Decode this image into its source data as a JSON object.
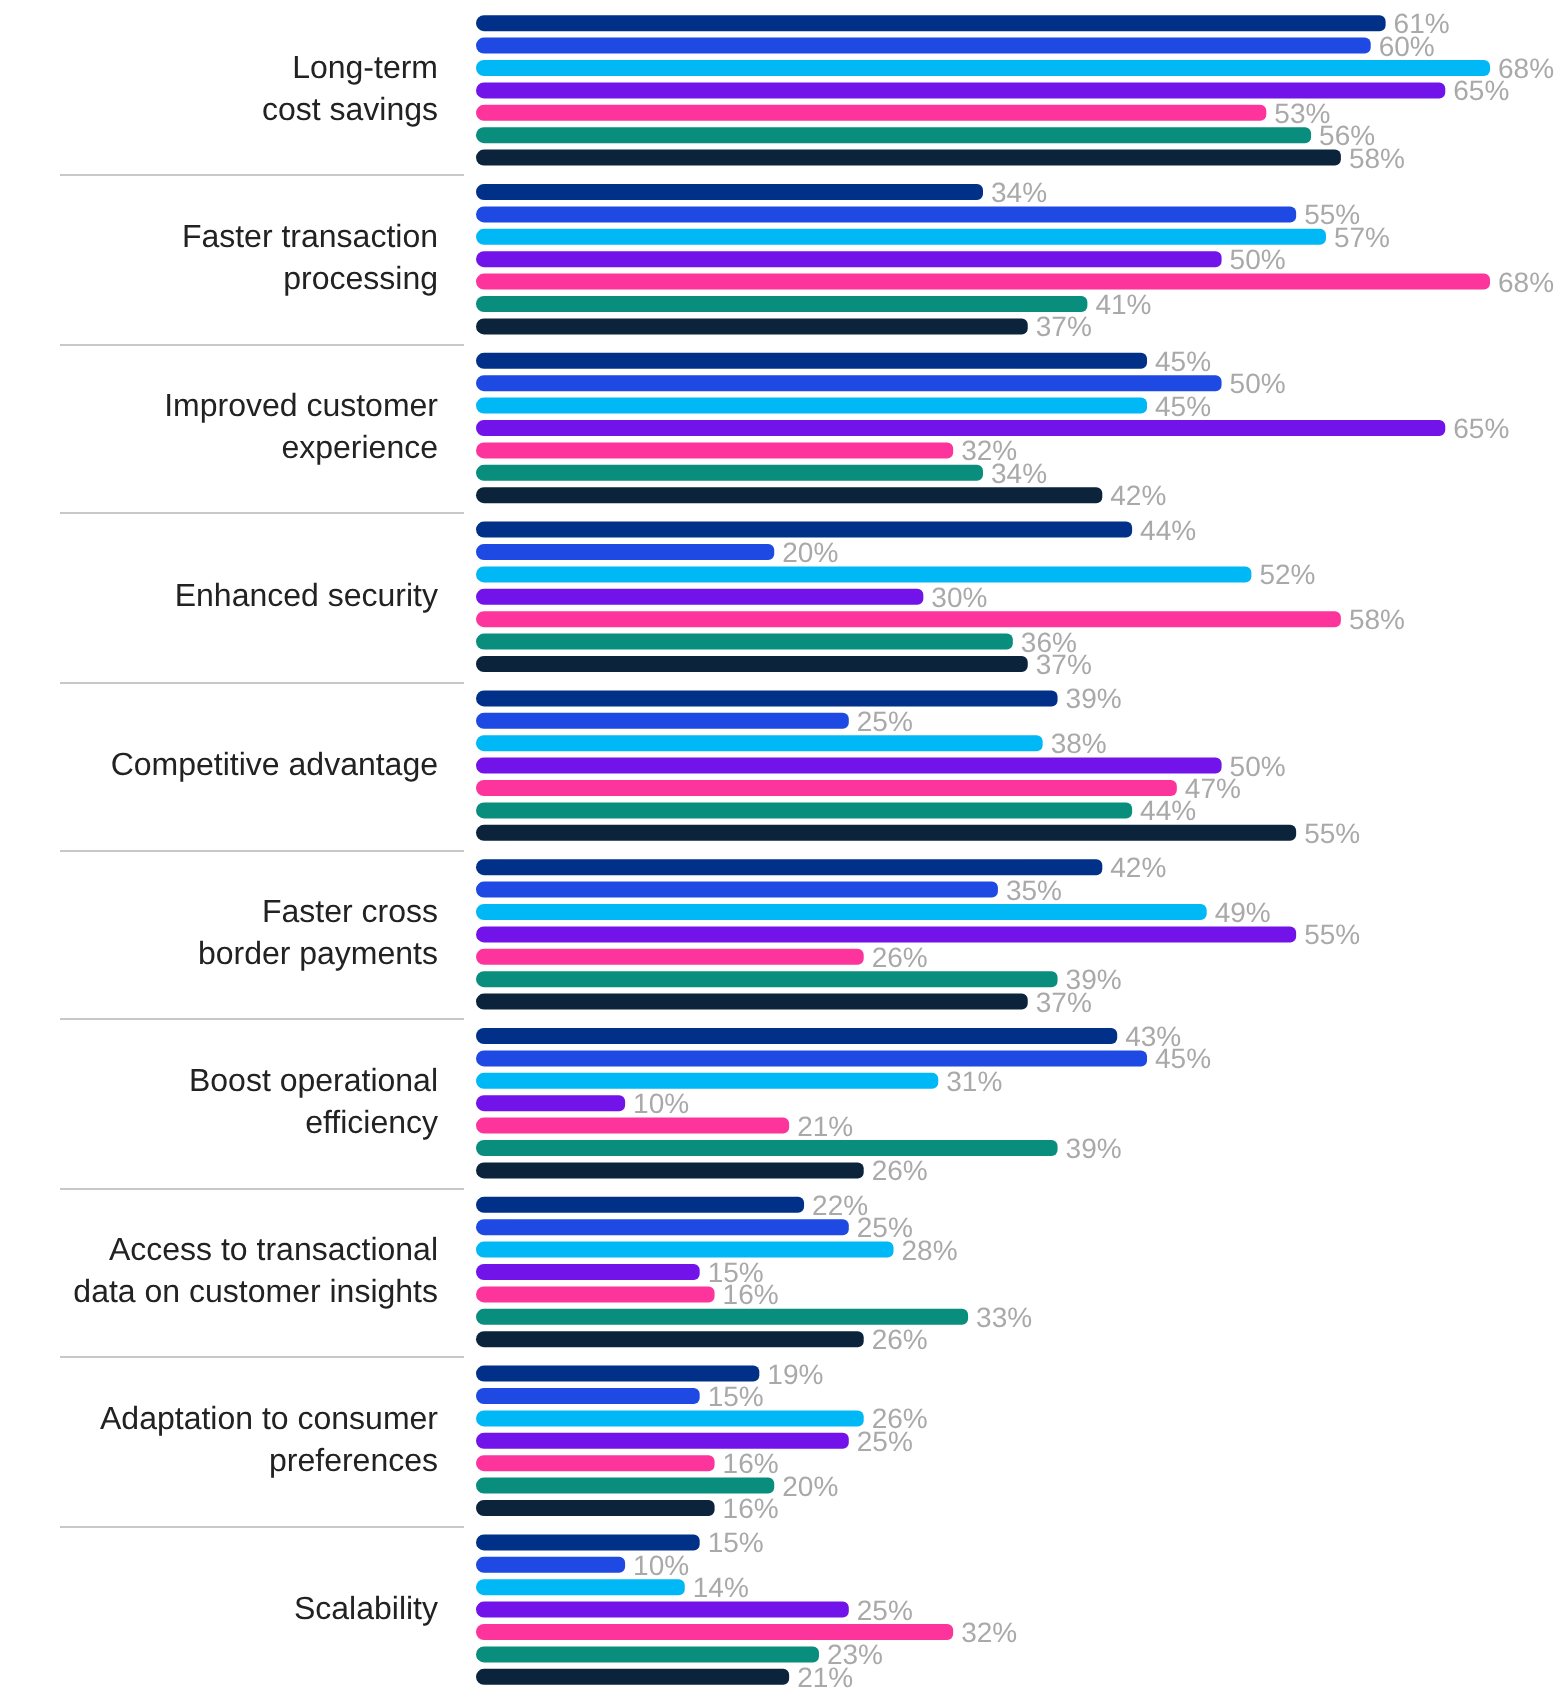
{
  "chart_data": {
    "type": "bar",
    "orientation": "horizontal",
    "categories": [
      "Long-term\ncost savings",
      "Faster transaction\nprocessing",
      "Improved customer\nexperience",
      "Enhanced security",
      "Competitive advantage",
      "Faster cross\nborder payments",
      "Boost operational\nefficiency",
      "Access to transactional\ndata on customer insights",
      "Adaptation to consumer\npreferences",
      "Scalability"
    ],
    "series": [
      {
        "color": "#003087",
        "values": [
          61,
          34,
          45,
          44,
          39,
          42,
          43,
          22,
          19,
          15
        ],
        "value_labels": [
          "61%",
          "34%",
          "45%",
          "44%",
          "39%",
          "42%",
          "43%",
          "22%",
          "19%",
          "15%"
        ]
      },
      {
        "color": "#1e49e2",
        "values": [
          60,
          55,
          50,
          20,
          25,
          35,
          45,
          25,
          15,
          10
        ],
        "value_labels": [
          "60%",
          "55%",
          "50%",
          "20%",
          "25%",
          "35%",
          "45%",
          "25%",
          "15%",
          "10%"
        ]
      },
      {
        "color": "#00b8f5",
        "values": [
          68,
          57,
          45,
          52,
          38,
          49,
          31,
          28,
          26,
          14
        ],
        "value_labels": [
          "68%",
          "57%",
          "45%",
          "52%",
          "38%",
          "49%",
          "31%",
          "28%",
          "26%",
          "14%"
        ]
      },
      {
        "color": "#7213ea",
        "values": [
          65,
          50,
          65,
          30,
          50,
          55,
          10,
          15,
          25,
          25
        ],
        "value_labels": [
          "65%",
          "50%",
          "65%",
          "30%",
          "50%",
          "55%",
          "10%",
          "15%",
          "25%",
          "25%"
        ]
      },
      {
        "color": "#fd349c",
        "values": [
          53,
          68,
          32,
          58,
          47,
          26,
          21,
          16,
          16,
          32
        ],
        "value_labels": [
          "53%",
          "68%",
          "32%",
          "58%",
          "47%",
          "26%",
          "21%",
          "16%",
          "16%",
          "32%"
        ]
      },
      {
        "color": "#098e7e",
        "values": [
          56,
          41,
          34,
          36,
          44,
          39,
          39,
          33,
          20,
          23
        ],
        "value_labels": [
          "56%",
          "41%",
          "34%",
          "36%",
          "44%",
          "39%",
          "39%",
          "33%",
          "20%",
          "23%"
        ]
      },
      {
        "color": "#0c233c",
        "values": [
          58,
          37,
          42,
          37,
          55,
          37,
          26,
          26,
          16,
          21
        ],
        "value_labels": [
          "58%",
          "37%",
          "42%",
          "37%",
          "55%",
          "37%",
          "26%",
          "26%",
          "16%",
          "21%"
        ]
      }
    ]
  }
}
